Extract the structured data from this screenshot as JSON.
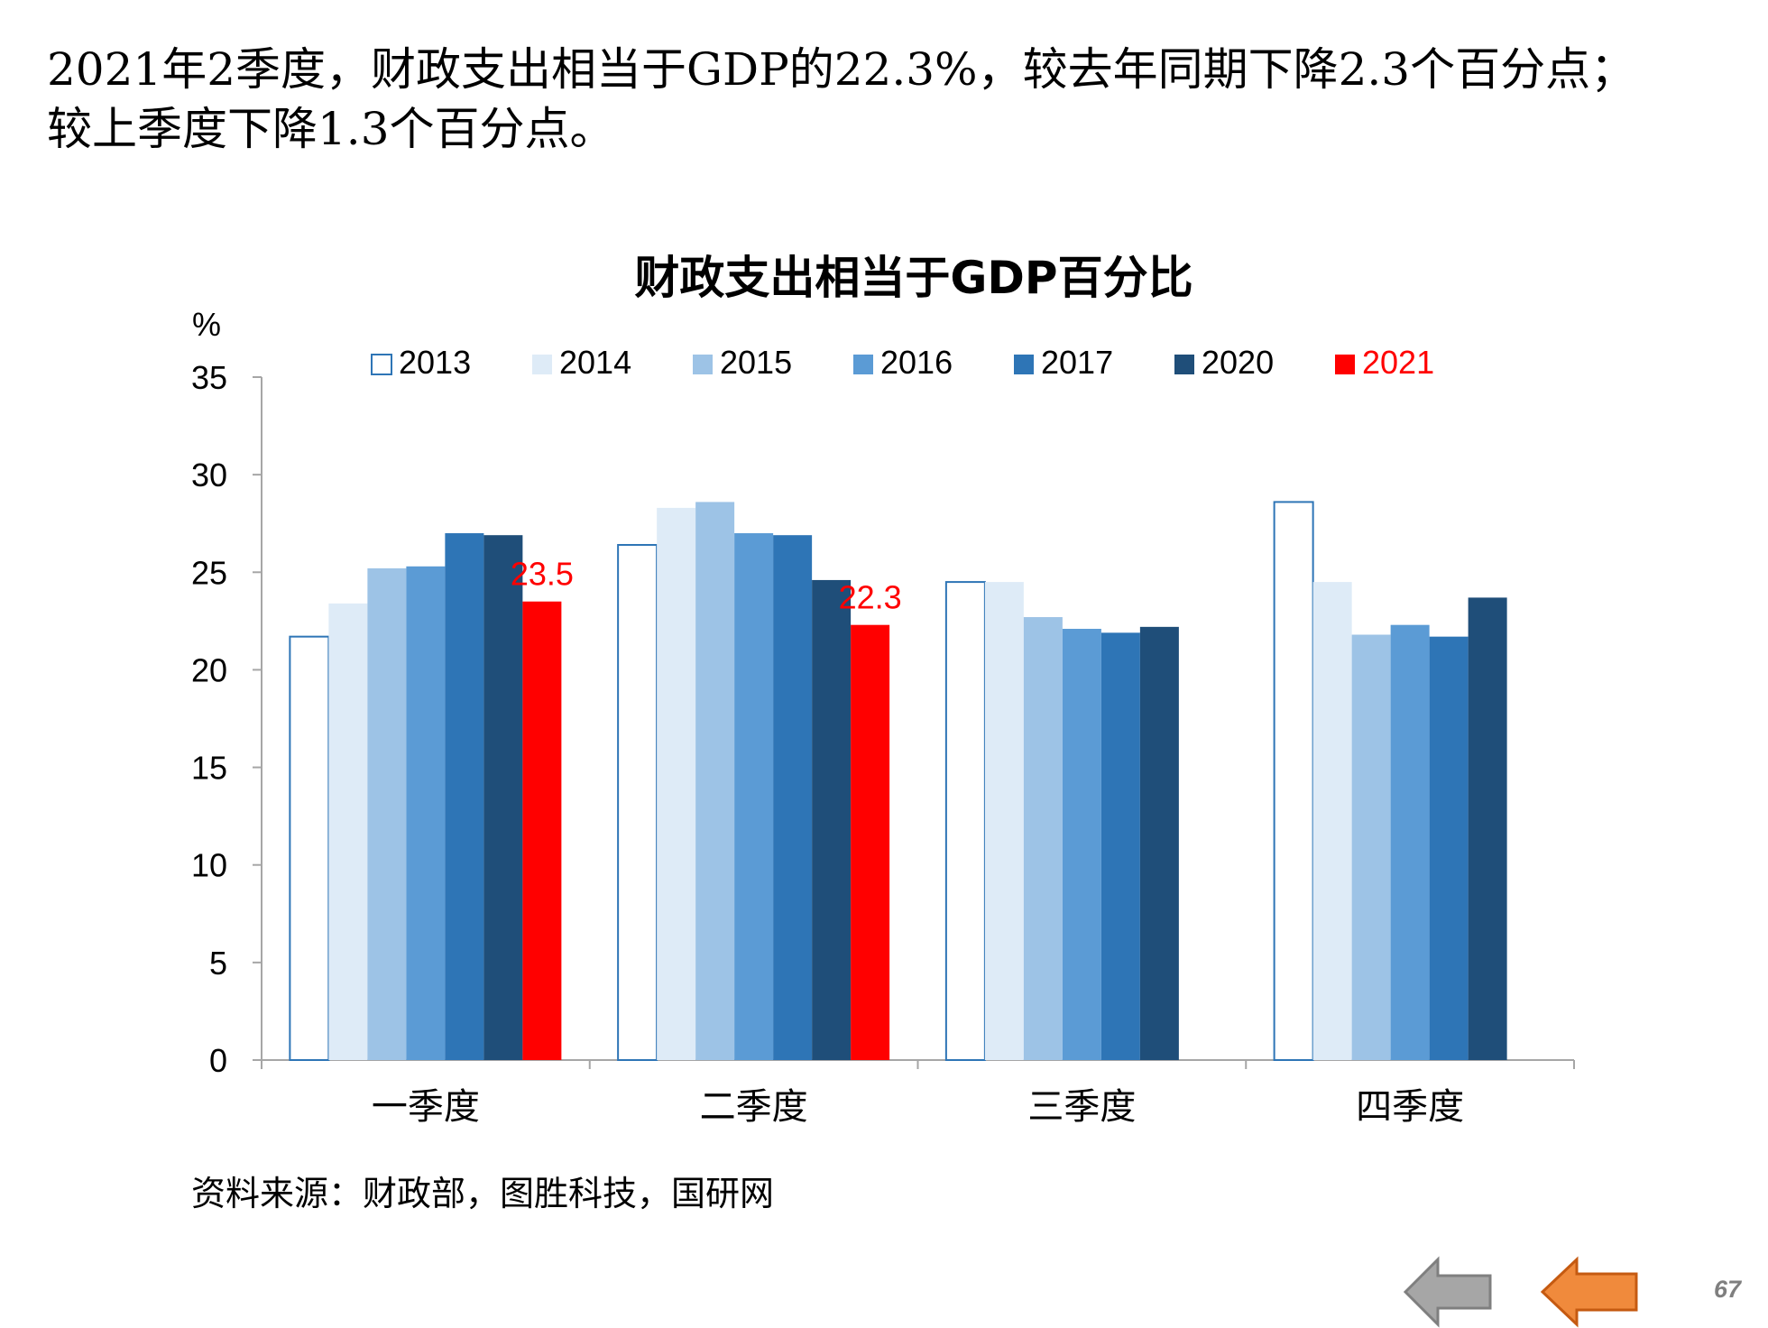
{
  "headline": {
    "line1": "2021年2季度，财政支出相当于GDP的22.3%，较去年同期下降2.3个百分点；",
    "line2": "较上季度下降1.3个百分点。"
  },
  "chart_data": {
    "type": "bar",
    "title": "财政支出相当于GDP百分比",
    "ylabel": "%",
    "xlabel": "",
    "ylim": [
      0,
      35
    ],
    "yticks": [
      "0",
      "5",
      "10",
      "15",
      "20",
      "25",
      "30",
      "35"
    ],
    "grid": false,
    "legend_position": "top",
    "categories": [
      "一季度",
      "二季度",
      "三季度",
      "四季度"
    ],
    "series": [
      {
        "name": "2013",
        "color": "#ffffff",
        "stroke": "#2e75b6",
        "values": [
          21.7,
          26.4,
          24.5,
          28.6
        ]
      },
      {
        "name": "2014",
        "color": "#deebf7",
        "values": [
          23.4,
          28.3,
          24.5,
          24.5
        ]
      },
      {
        "name": "2015",
        "color": "#9dc3e6",
        "values": [
          25.2,
          28.6,
          22.7,
          21.8
        ]
      },
      {
        "name": "2016",
        "color": "#5b9bd5",
        "values": [
          25.3,
          27.0,
          22.1,
          22.3
        ]
      },
      {
        "name": "2017",
        "color": "#2e75b6",
        "values": [
          27.0,
          26.9,
          21.9,
          21.7
        ]
      },
      {
        "name": "2020",
        "color": "#1f4e79",
        "values": [
          26.9,
          24.6,
          22.2,
          23.7
        ]
      },
      {
        "name": "2021",
        "color": "#ff0000",
        "values": [
          23.5,
          22.3,
          null,
          null
        ]
      }
    ],
    "data_labels": [
      {
        "series": "2021",
        "category": "一季度",
        "text": "23.5",
        "color": "#ff0000"
      },
      {
        "series": "2021",
        "category": "二季度",
        "text": "22.3",
        "color": "#ff0000"
      }
    ]
  },
  "source": "资料来源：财政部，图胜科技，国研网",
  "page_number": "67",
  "nav": {
    "prev_icon": "gray-left-arrow-icon",
    "prev_color": "#a6a6a6",
    "prev_stroke": "#7f7f7f",
    "next_icon": "orange-left-arrow-icon",
    "next_color": "#f08a3c",
    "next_stroke": "#c55a11"
  }
}
